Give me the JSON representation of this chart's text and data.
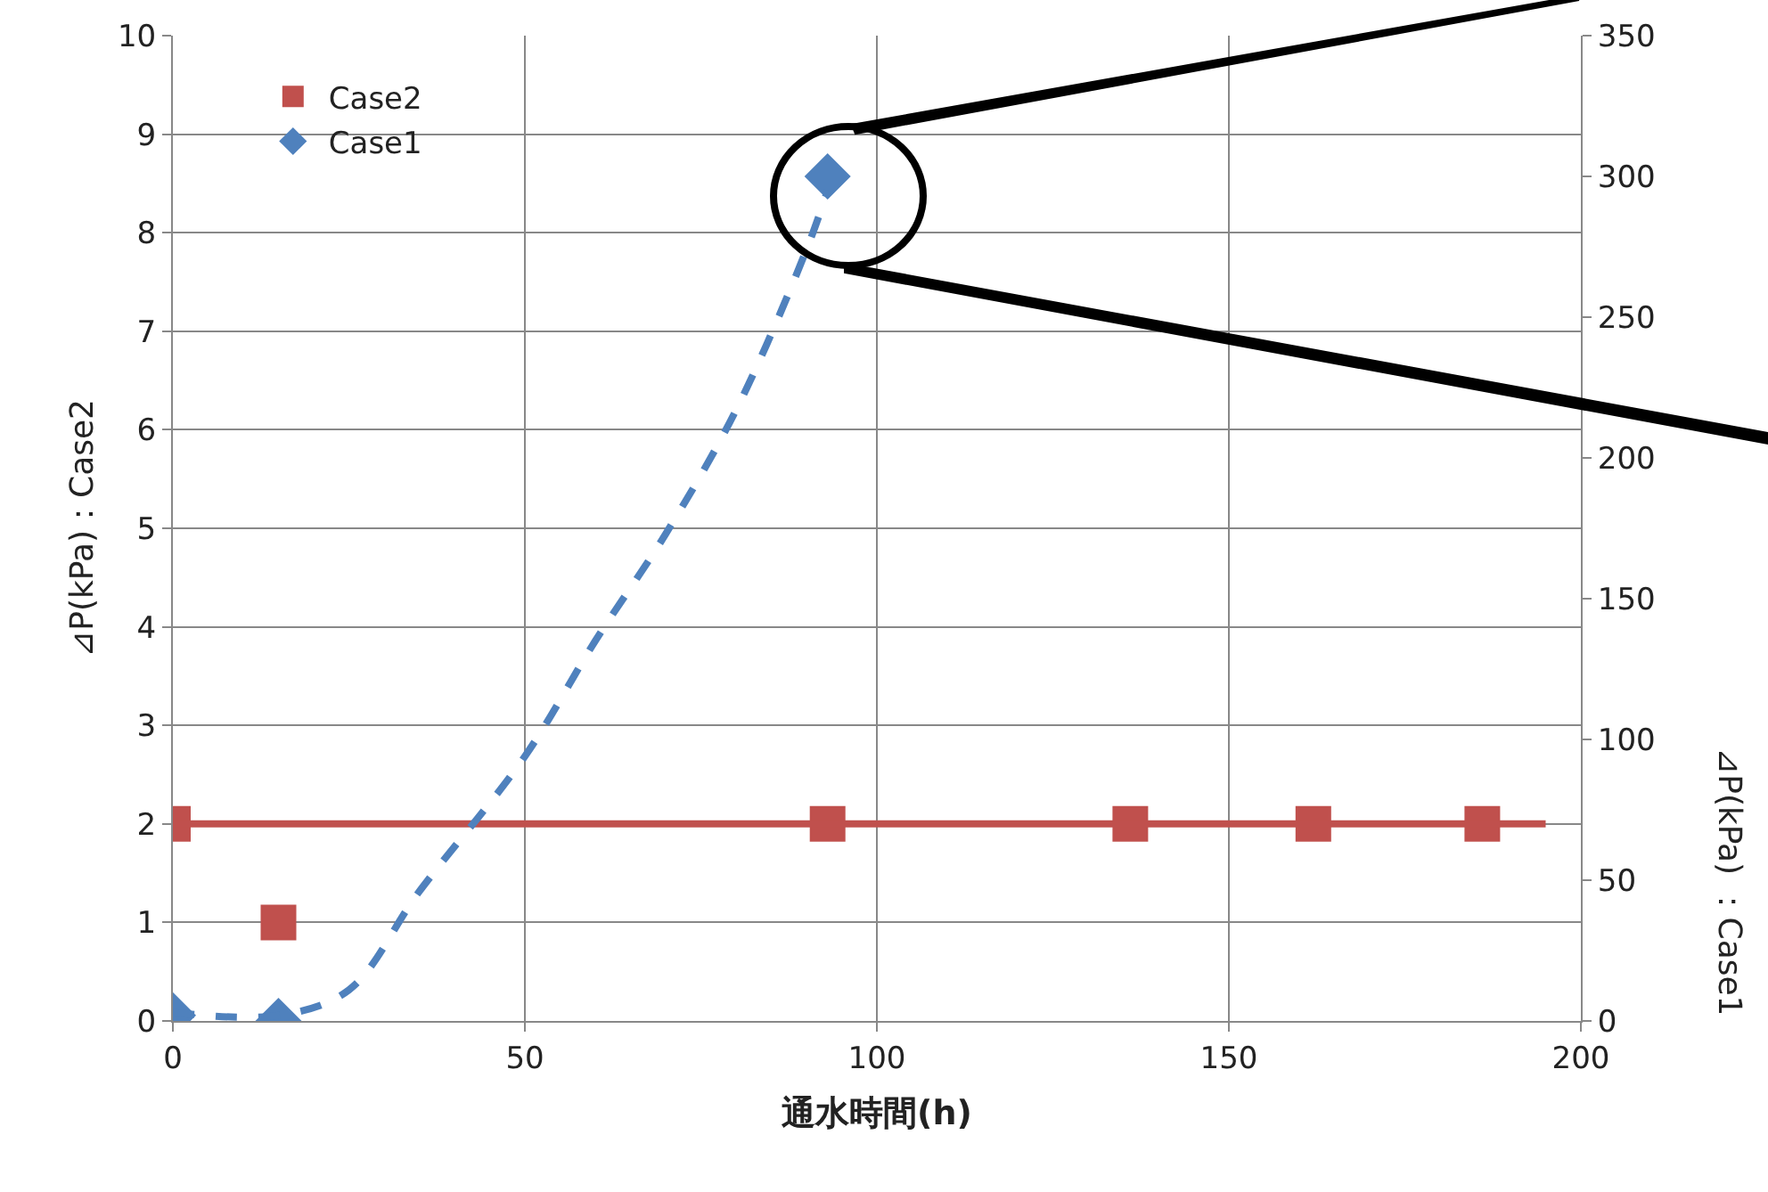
{
  "chart_data": {
    "type": "scatter",
    "xlabel": "通水時間(h)",
    "ylabel": "⊿P(kPa)：Case2",
    "y2label": "⊿P(kPa) ：Case1",
    "xlim": [
      0,
      200
    ],
    "xticks": [
      0,
      50,
      100,
      150,
      200
    ],
    "ylim": [
      0,
      10
    ],
    "yticks": [
      0,
      1,
      2,
      3,
      4,
      5,
      6,
      7,
      8,
      9,
      10
    ],
    "y2lim": [
      0,
      350
    ],
    "y2ticks": [
      0,
      50,
      100,
      150,
      200,
      250,
      300,
      350
    ],
    "grid": true,
    "legend": "top left",
    "series": [
      {
        "name": "Case2",
        "marker": "square",
        "color": "#c0504d",
        "x": [
          0,
          15,
          93,
          136,
          162,
          186
        ],
        "values": [
          2,
          1,
          2,
          2,
          2,
          2
        ]
      },
      {
        "name": "Case1",
        "marker": "diamond",
        "color": "#4f81bd",
        "axis": "y2",
        "x": [
          0,
          15,
          93
        ],
        "values": [
          2,
          0,
          300
        ]
      },
      {
        "type": "line",
        "color": "#c0504d",
        "line_style": "solid",
        "x": [
          0,
          195
        ],
        "values": [
          2,
          2
        ]
      },
      {
        "type": "line",
        "color": "#4f81bd",
        "line_style": "dashed",
        "axis": "y2",
        "x": [
          0,
          15,
          25,
          35,
          50,
          60,
          70,
          80,
          90,
          93
        ],
        "values": [
          3,
          2,
          11,
          46,
          94,
          135,
          173,
          217,
          274,
          295
        ]
      }
    ]
  }
}
